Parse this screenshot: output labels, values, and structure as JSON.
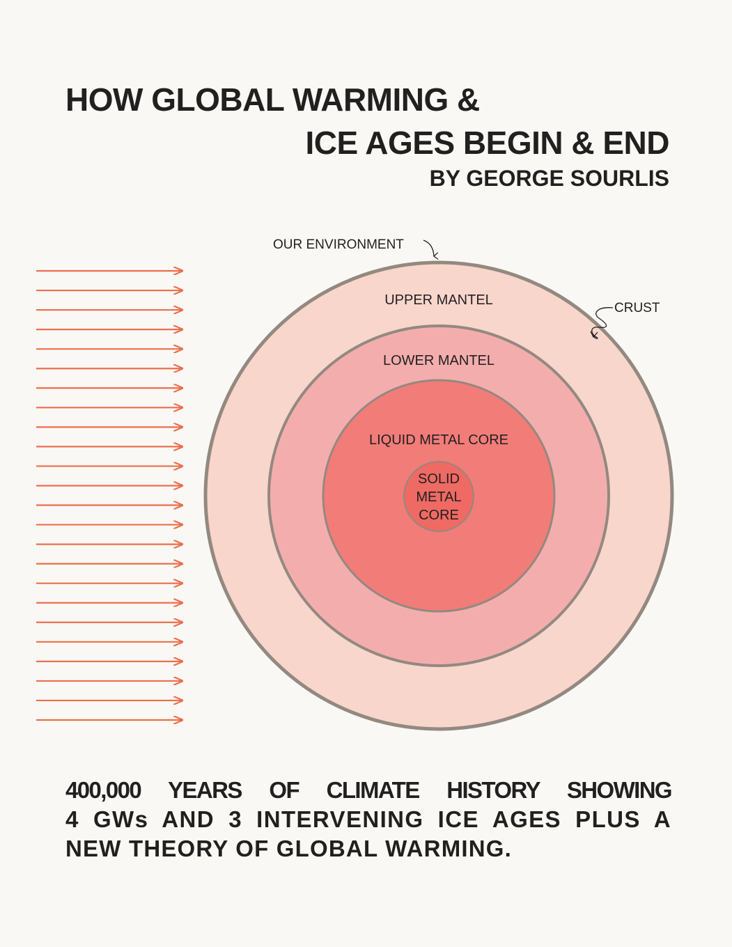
{
  "title": {
    "line1": "HOW GLOBAL WARMING &",
    "line2": "ICE AGES BEGIN & END",
    "author": "BY GEORGE SOURLIS"
  },
  "diagram": {
    "labels": {
      "environment": "OUR ENVIRONMENT",
      "crust": "CRUST",
      "upper_mantel": "UPPER MANTEL",
      "lower_mantel": "LOWER MANTEL",
      "liquid_core": "LIQUID METAL CORE",
      "solid_core_line1": "SOLID",
      "solid_core_line2": "METAL",
      "solid_core_line3": "CORE"
    },
    "arrow_count": 24,
    "colors": {
      "arrow": "#ec6f4c",
      "outline": "#938980",
      "upper_mantel": "#f8d6cc",
      "lower_mantel": "#f4adad",
      "liquid_core": "#f27c78",
      "solid_core": "#ee6a63",
      "background": "#f9f8f4"
    }
  },
  "footer": {
    "line1": "400,000 YEARS OF CLIMATE HISTORY SHOWING",
    "line2": "4 GWs AND 3 INTERVENING ICE AGES PLUS A",
    "line3": "NEW THEORY OF GLOBAL WARMING."
  }
}
